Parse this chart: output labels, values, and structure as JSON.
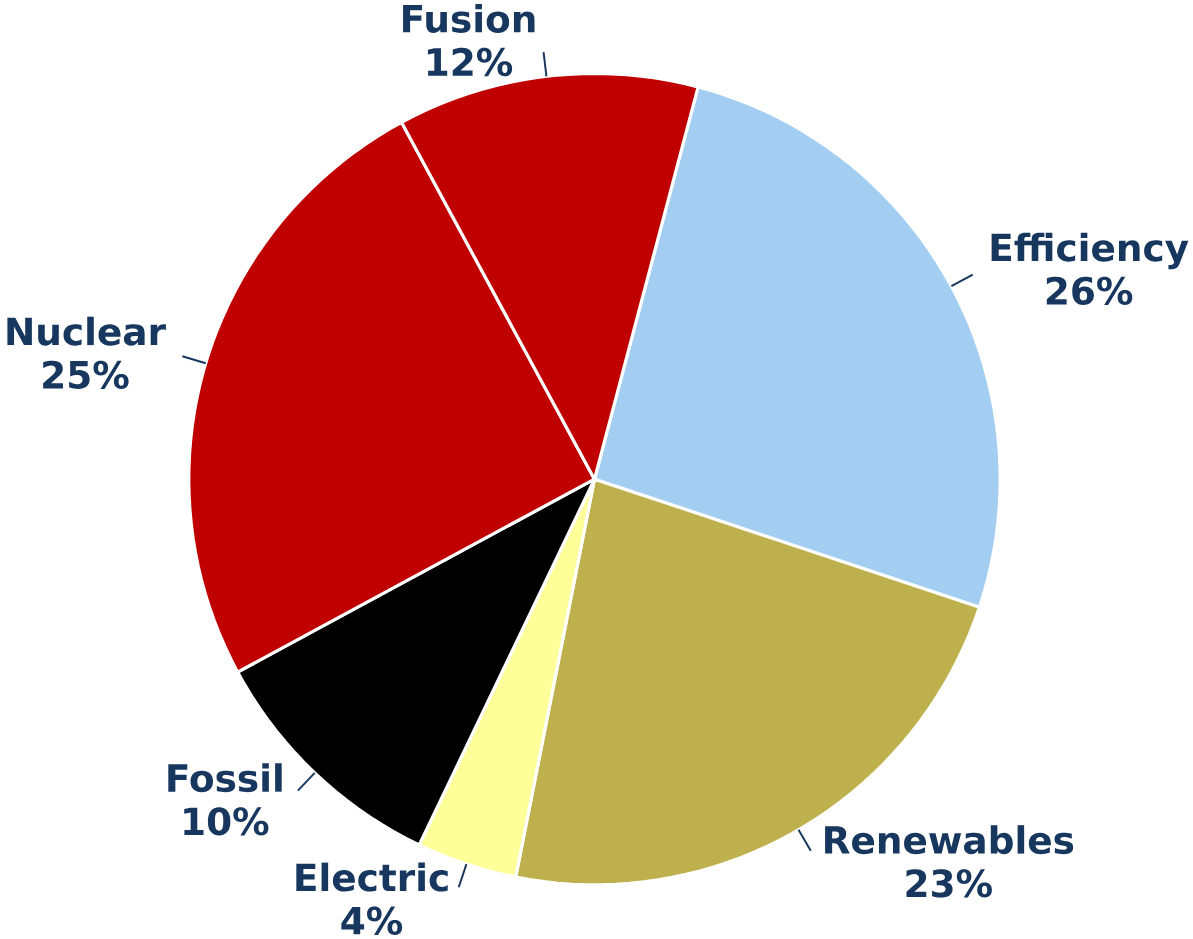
{
  "chart_data": {
    "type": "pie",
    "categories": [
      "Efficiency",
      "Renewables",
      "Electric",
      "Fossil",
      "Nuclear",
      "Fusion"
    ],
    "values": [
      26,
      23,
      4,
      10,
      25,
      12
    ],
    "value_labels": [
      "26%",
      "23%",
      "4%",
      "10%",
      "25%",
      "12%"
    ],
    "colors": [
      "#a3cdf1",
      "#bdb04d",
      "#ffff99",
      "#000000",
      "#c00000",
      "#c00000"
    ]
  }
}
